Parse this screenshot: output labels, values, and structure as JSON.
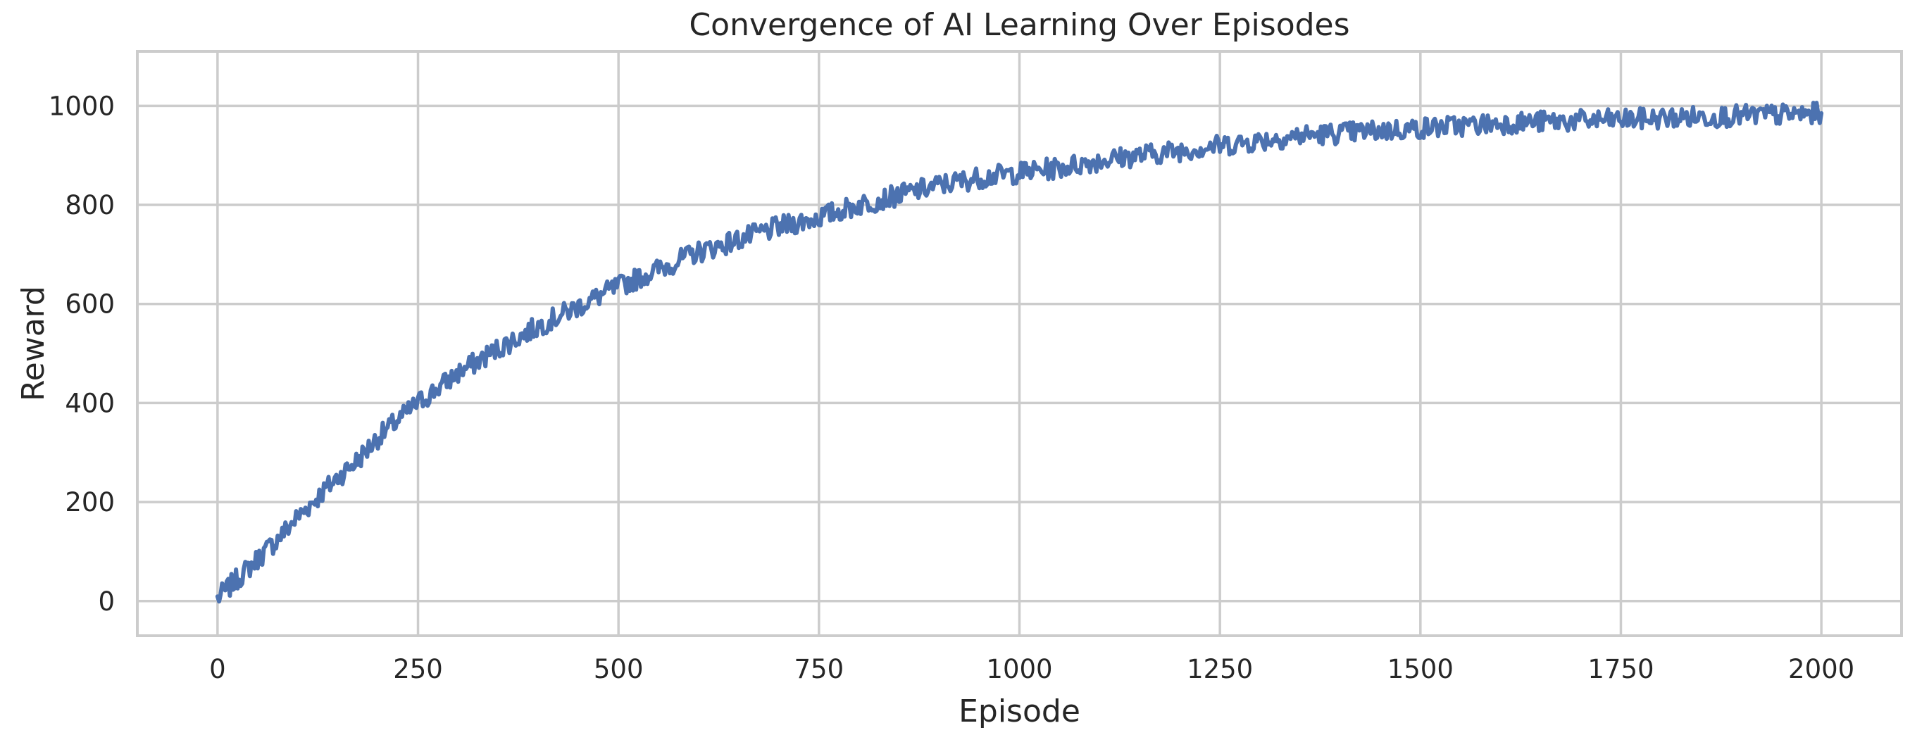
{
  "chart_data": {
    "type": "line",
    "title": "Convergence of AI Learning Over Episodes",
    "xlabel": "Episode",
    "ylabel": "Reward",
    "xlim": [
      -100,
      2100
    ],
    "ylim": [
      -70,
      1110
    ],
    "xticks": [
      0,
      250,
      500,
      750,
      1000,
      1250,
      1500,
      1750,
      2000
    ],
    "xtick_labels": [
      "0",
      "250",
      "500",
      "750",
      "1000",
      "1250",
      "1500",
      "1750",
      "2000"
    ],
    "yticks": [
      0,
      200,
      400,
      600,
      800,
      1000
    ],
    "ytick_labels": [
      "0",
      "200",
      "400",
      "600",
      "800",
      "1000"
    ],
    "grid": true,
    "legend": "none",
    "colors": {
      "series": "#4c72b0",
      "grid": "#cccccc",
      "text": "#262626"
    },
    "series": [
      {
        "x": [
          0,
          25,
          50,
          75,
          100,
          125,
          150,
          175,
          200,
          250,
          300,
          350,
          400,
          450,
          500,
          550,
          600,
          650,
          700,
          750,
          800,
          850,
          900,
          950,
          1000,
          1050,
          1100,
          1150,
          1200,
          1250,
          1300,
          1350,
          1400,
          1450,
          1500,
          1550,
          1600,
          1650,
          1700,
          1750,
          1800,
          1850,
          1900,
          1950,
          2000
        ],
        "values": [
          5,
          45,
          85,
          125,
          170,
          210,
          250,
          285,
          330,
          400,
          460,
          510,
          555,
          595,
          635,
          670,
          705,
          730,
          755,
          775,
          800,
          820,
          840,
          855,
          865,
          875,
          890,
          900,
          910,
          920,
          930,
          940,
          945,
          950,
          955,
          960,
          965,
          968,
          970,
          972,
          975,
          978,
          980,
          982,
          985
        ]
      }
    ]
  }
}
